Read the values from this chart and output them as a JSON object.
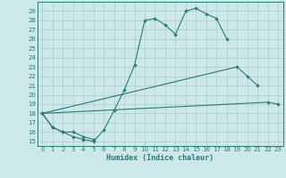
{
  "xlabel": "Humidex (Indice chaleur)",
  "bg_color": "#cce8e8",
  "line_color": "#2d7878",
  "grid_color": "#b0c8c8",
  "xlim": [
    -0.5,
    23.5
  ],
  "ylim": [
    14.5,
    30.0
  ],
  "xticks": [
    0,
    1,
    2,
    3,
    4,
    5,
    6,
    7,
    8,
    9,
    10,
    11,
    12,
    13,
    14,
    15,
    16,
    17,
    18,
    19,
    20,
    21,
    22,
    23
  ],
  "yticks": [
    15,
    16,
    17,
    18,
    19,
    20,
    21,
    22,
    23,
    24,
    25,
    26,
    27,
    28,
    29
  ],
  "series0_x": [
    0,
    1,
    2,
    3,
    4,
    5,
    6,
    7,
    8,
    9,
    10,
    11,
    12,
    13,
    14,
    15,
    16,
    17,
    18
  ],
  "series0_y": [
    18.0,
    16.5,
    16.0,
    15.5,
    15.2,
    15.0,
    16.2,
    18.3,
    20.5,
    23.2,
    28.0,
    28.2,
    27.5,
    26.5,
    29.0,
    29.3,
    28.7,
    28.2,
    26.0
  ],
  "series1_x": [
    0,
    1,
    2,
    3,
    4,
    5
  ],
  "series1_y": [
    18.0,
    16.5,
    16.0,
    16.0,
    15.5,
    15.2
  ],
  "series2_x": [
    0,
    19,
    20,
    21
  ],
  "series2_y": [
    18.0,
    23.0,
    22.0,
    21.0
  ],
  "series3_x": [
    0,
    22,
    23
  ],
  "series3_y": [
    18.0,
    19.2,
    19.0
  ]
}
